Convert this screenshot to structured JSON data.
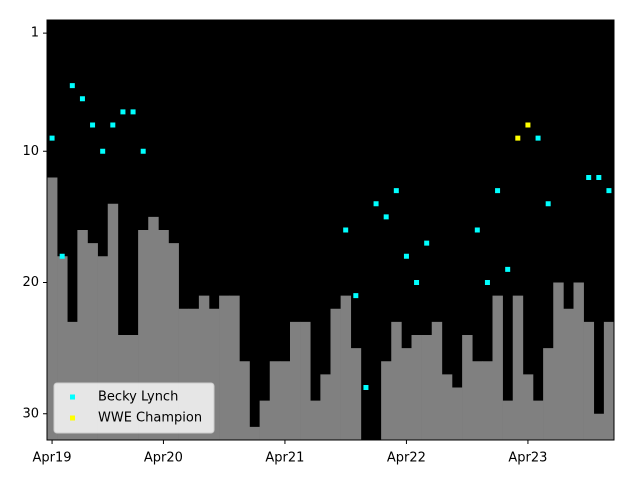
{
  "chart_data": {
    "type": "scatter",
    "xlim": [
      -0.5,
      55.5
    ],
    "xticks": [
      {
        "value": 0,
        "label": "Apr19"
      },
      {
        "value": 11,
        "label": "Apr20"
      },
      {
        "value": 23,
        "label": "Apr21"
      },
      {
        "value": 35,
        "label": "Apr22"
      },
      {
        "value": 47,
        "label": "Apr23"
      }
    ],
    "ylim": [
      32,
      0
    ],
    "yticks": [
      1,
      10,
      20,
      30
    ],
    "background": "#000000",
    "legend": "lower left",
    "bars": {
      "color": "#808080",
      "values": [
        12,
        18,
        23,
        16,
        17,
        18,
        14,
        24,
        24,
        16,
        15,
        16,
        17,
        22,
        22,
        21,
        22,
        21,
        21,
        26,
        31,
        29,
        26,
        26,
        23,
        23,
        29,
        27,
        22,
        21,
        25,
        null,
        null,
        26,
        23,
        25,
        24,
        24,
        23,
        27,
        28,
        24,
        26,
        26,
        21,
        29,
        21,
        27,
        29,
        25,
        20,
        22,
        20,
        23,
        30,
        23
      ]
    },
    "series": [
      {
        "name": "Becky Lynch",
        "color": "#00ffff",
        "x": [
          0,
          1,
          2,
          3,
          4,
          5,
          6,
          7,
          8,
          9,
          29,
          30,
          31,
          32,
          33,
          34,
          35,
          36,
          37,
          42,
          43,
          44,
          45,
          48,
          49,
          53,
          54,
          55
        ],
        "values": [
          9,
          18,
          5,
          6,
          8,
          10,
          8,
          7,
          7,
          10,
          16,
          21,
          28,
          14,
          15,
          13,
          18,
          20,
          17,
          16,
          20,
          13,
          19,
          9,
          14,
          12,
          12,
          13
        ]
      },
      {
        "name": "WWE Champion",
        "color": "#ffff00",
        "x": [
          46,
          47
        ],
        "values": [
          9,
          8
        ]
      }
    ]
  }
}
